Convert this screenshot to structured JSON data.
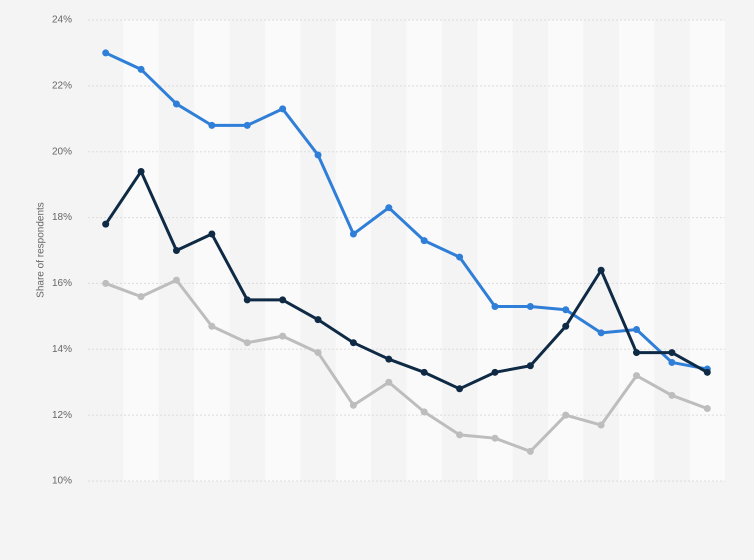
{
  "chart_data": {
    "type": "line",
    "y_label": "Share of respondents",
    "categories": [
      null,
      null,
      null,
      null,
      null,
      null,
      null,
      null,
      null,
      null,
      null,
      null,
      null,
      null,
      null,
      null,
      null,
      null
    ],
    "series": [
      {
        "color": "#bdbdbd",
        "values": [
          16.0,
          15.6,
          16.1,
          14.7,
          14.2,
          14.4,
          13.9,
          12.3,
          13.0,
          12.1,
          11.4,
          11.3,
          10.9,
          12.0,
          11.7,
          13.2,
          12.6,
          12.2
        ]
      },
      {
        "color": "#2f7ed8",
        "values": [
          23.0,
          22.5,
          21.45,
          20.8,
          20.8,
          21.3,
          19.9,
          17.5,
          18.3,
          17.3,
          16.8,
          15.3,
          15.3,
          15.2,
          14.5,
          14.6,
          13.6,
          13.4
        ]
      },
      {
        "color": "#0f2a45",
        "values": [
          17.8,
          19.4,
          17.0,
          17.5,
          15.5,
          15.5,
          14.9,
          14.2,
          13.7,
          13.3,
          12.8,
          13.3,
          13.5,
          14.7,
          16.4,
          13.9,
          13.9,
          13.3
        ]
      }
    ],
    "ylim": [
      10,
      24
    ],
    "yticks": [
      {
        "value": 10,
        "label": "10%"
      },
      {
        "value": 12,
        "label": "12%"
      },
      {
        "value": 14,
        "label": "14%"
      },
      {
        "value": 16,
        "label": "16%"
      },
      {
        "value": 18,
        "label": "18%"
      },
      {
        "value": 20,
        "label": "20%"
      },
      {
        "value": 22,
        "label": "22%"
      },
      {
        "value": 24,
        "label": "24%"
      }
    ],
    "grid": true
  }
}
